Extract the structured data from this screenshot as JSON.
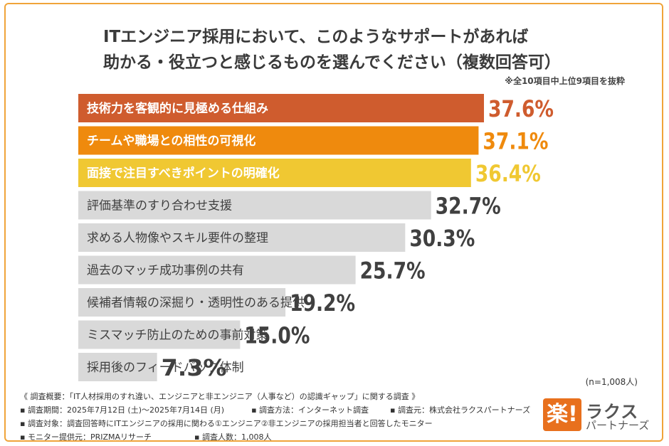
{
  "header": {
    "title_line1": "ITエンジニア採用において、このようなサポートがあれば",
    "title_line2": "助かる・役立つと感じるものを選んでください（複数回答可）",
    "note": "※全10項目中上位9項目を抜粋"
  },
  "chart_data": {
    "type": "bar",
    "orientation": "horizontal",
    "categories": [
      "技術力を客観的に見極める仕組み",
      "チームや職場との相性の可視化",
      "面接で注目すべきポイントの明確化",
      "評価基準のすり合わせ支援",
      "求める人物像やスキル要件の整理",
      "過去のマッチ成功事例の共有",
      "候補者情報の深掘り・透明性のある提供",
      "ミスマッチ防止のための事前対策",
      "採用後のフィードバック体制"
    ],
    "values": [
      37.6,
      37.1,
      36.4,
      32.7,
      30.3,
      25.7,
      19.2,
      15.0,
      7.3
    ],
    "value_labels": [
      "37.6%",
      "37.1%",
      "36.4%",
      "32.7%",
      "30.3%",
      "25.7%",
      "19.2%",
      "15.0%",
      "7.3%"
    ],
    "unit": "%",
    "colors": [
      "#cf5c2e",
      "#ef8a0d",
      "#f0c832",
      "#d9d9d9",
      "#d9d9d9",
      "#d9d9d9",
      "#d9d9d9",
      "#d9d9d9",
      "#d9d9d9"
    ],
    "label_colors": [
      "#cf5c2e",
      "#ef8a0d",
      "#f0c832",
      "#404040",
      "#404040",
      "#404040",
      "#404040",
      "#404040",
      "#404040"
    ],
    "text_colors": [
      "#ffffff",
      "#ffffff",
      "#ffffff",
      "#404040",
      "#404040",
      "#404040",
      "#404040",
      "#404040",
      "#404040"
    ],
    "xlim": [
      0,
      40
    ],
    "sample_note": "(n=1,008人)"
  },
  "survey": {
    "overview": "《 調査概要：「IT人材採用のすれ違い、エンジニアと非エンジニア（人事など）の認識ギャップ」に関する調査 》",
    "period": "▪ 調査期間：2025年7月12日 (土)〜2025年7月14日 (月)",
    "method": "▪ 調査方法：インターネット調査",
    "source": "▪ 調査元：株式会社ラクスパートナーズ",
    "target": "▪ 調査対象：調査回答時にITエンジニアの採用に関わる①エンジニア②非エンジニアの採用担当者と回答したモニター",
    "provider": "▪ モニター提供元：PRIZMAリサーチ",
    "count": "▪ 調査人数：1,008人"
  },
  "logo": {
    "mark": "楽!",
    "line1": "ラクス",
    "line2": "パートナーズ"
  }
}
